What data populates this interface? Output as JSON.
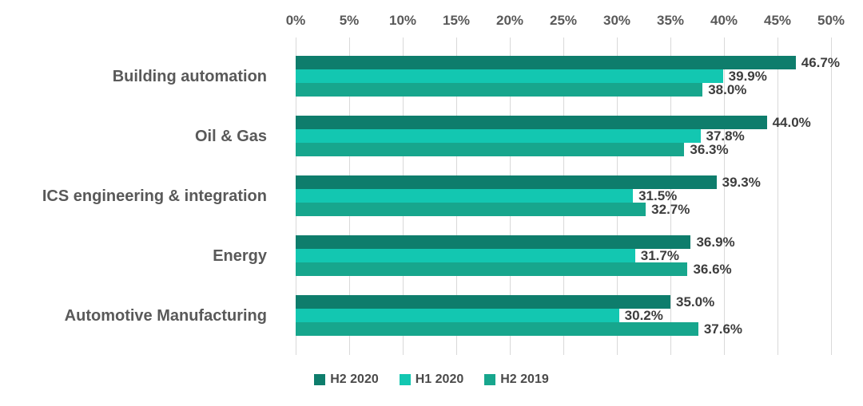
{
  "chart_data": {
    "type": "bar",
    "orientation": "horizontal",
    "title": "",
    "categories": [
      "Building automation",
      "Oil & Gas",
      "ICS engineering & integration",
      "Energy",
      "Automotive Manufacturing"
    ],
    "series": [
      {
        "name": "H2 2020",
        "color": "#0e7d6c",
        "values": [
          46.7,
          44.0,
          39.3,
          36.9,
          35.0
        ]
      },
      {
        "name": "H1 2020",
        "color": "#13c7b1",
        "values": [
          39.9,
          37.8,
          31.5,
          31.7,
          30.2
        ]
      },
      {
        "name": "H2 2019",
        "color": "#17a68d",
        "values": [
          38.0,
          36.3,
          32.7,
          36.6,
          37.6
        ]
      }
    ],
    "x_ticks": [
      "0%",
      "5%",
      "10%",
      "15%",
      "20%",
      "25%",
      "30%",
      "35%",
      "40%",
      "45%",
      "50%"
    ],
    "xlim": [
      0,
      50
    ],
    "value_suffix": "%",
    "value_decimals": 1,
    "grid": "vertical",
    "axis_position": "top",
    "legend_position": "bottom",
    "gridline_color": "#d9d9d9"
  }
}
